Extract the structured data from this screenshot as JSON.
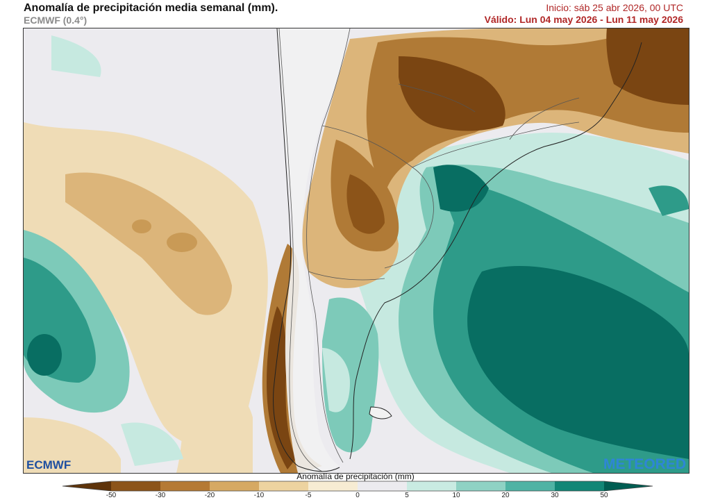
{
  "header": {
    "title": "Anomalía de precipitación media semanal (mm).",
    "subtitle": "ECMWF (0.4°)",
    "init": "Inicio:  sáb 25 abr 2026, 00 UTC",
    "valid": "Válido: Lun 04 may 2026 - Lun 11 may 2026"
  },
  "map": {
    "variable": "precipitation-anomaly",
    "region": "southern-south-america"
  },
  "logos": {
    "left": "ECMWF",
    "right": "METEORED"
  },
  "colorbar": {
    "title": "Anomalía de precipitación (mm)",
    "ticks": [
      "-50",
      "-30",
      "-20",
      "-10",
      "-5",
      "0",
      "5",
      "10",
      "20",
      "30",
      "50"
    ],
    "colors": [
      "#5e330a",
      "#8c5419",
      "#b57a35",
      "#d6a963",
      "#edd3a0",
      "#f7ecd3",
      "#ecebef",
      "#c9ebe2",
      "#8fd2c4",
      "#4fb3a4",
      "#118676",
      "#005d52"
    ]
  },
  "colors": {
    "dry_strong": "#7a4512",
    "dry_mid": "#b07a36",
    "dry_light": "#dcb57a",
    "dry_faint": "#efdcb6",
    "neutral": "#ecebef",
    "wet_faint": "#c6e9e0",
    "wet_light": "#7dcab9",
    "wet_mid": "#2e9b89",
    "wet_strong": "#086e62",
    "land": "#f2f2f2"
  }
}
